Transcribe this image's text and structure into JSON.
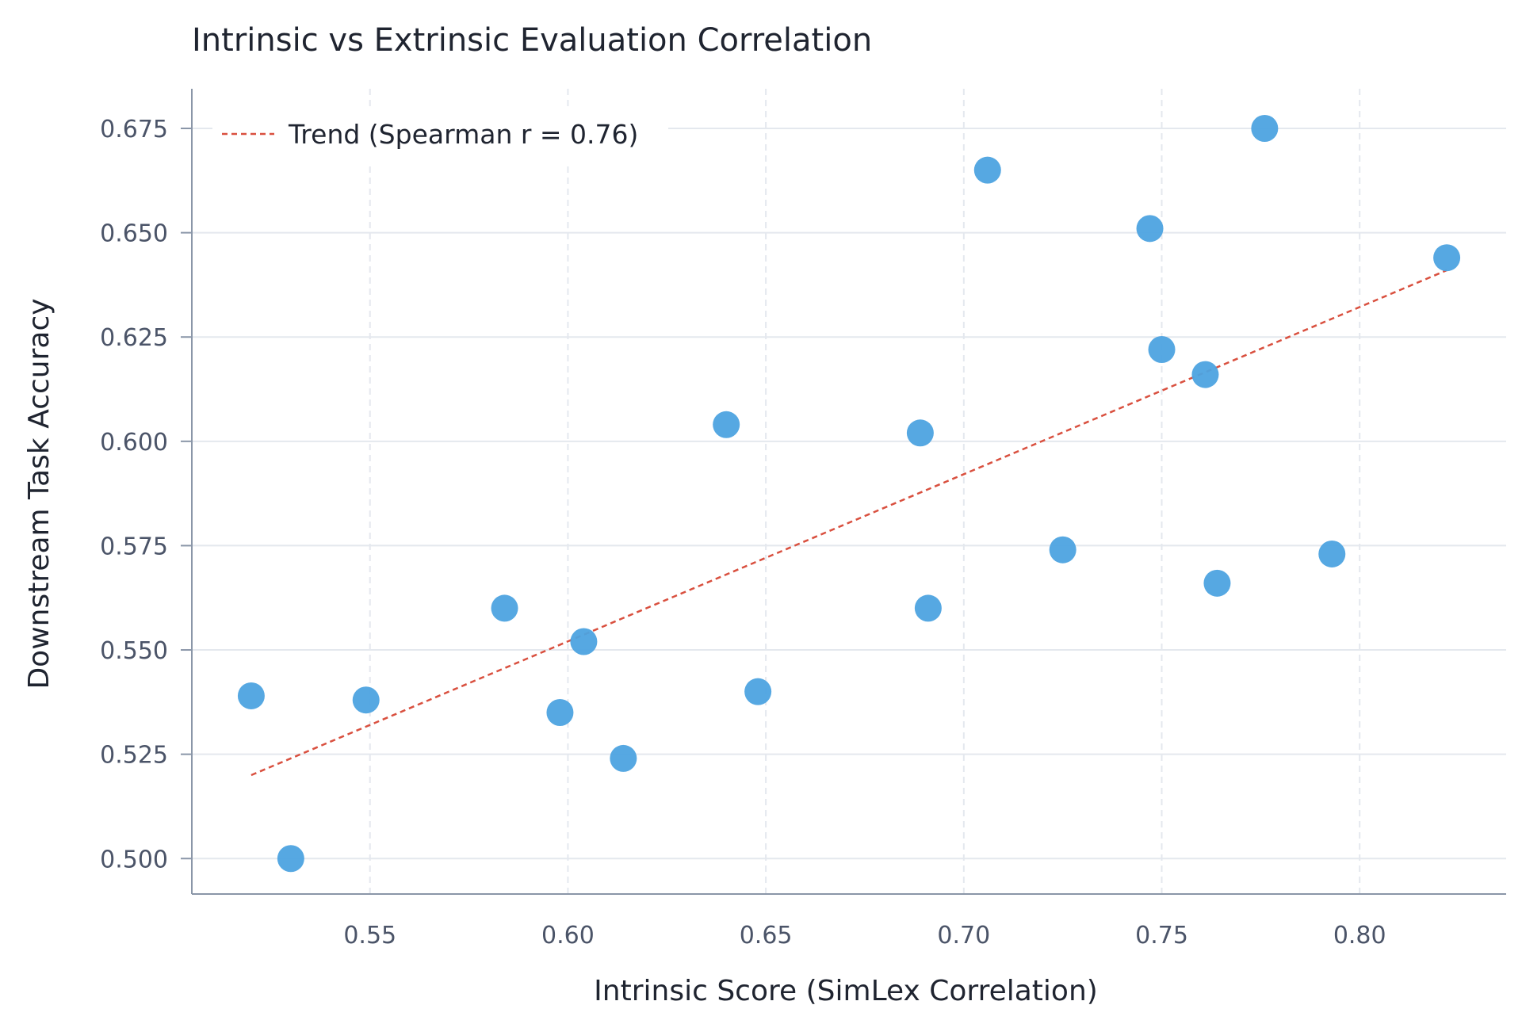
{
  "chart_data": {
    "type": "scatter",
    "title": "Intrinsic vs Extrinsic Evaluation Correlation",
    "xlabel": "Intrinsic Score (SimLex Correlation)",
    "ylabel": "Downstream Task Accuracy",
    "xlim": [
      0.505,
      0.837
    ],
    "ylim": [
      0.4915,
      0.6845
    ],
    "x_ticks": [
      0.55,
      0.6,
      0.65,
      0.7,
      0.75,
      0.8
    ],
    "y_ticks": [
      0.5,
      0.525,
      0.55,
      0.575,
      0.6,
      0.625,
      0.65,
      0.675
    ],
    "x_tick_labels": [
      "0.55",
      "0.60",
      "0.65",
      "0.70",
      "0.75",
      "0.80"
    ],
    "y_tick_labels": [
      "0.500",
      "0.525",
      "0.550",
      "0.575",
      "0.600",
      "0.625",
      "0.650",
      "0.675"
    ],
    "grid": true,
    "legend_position": "top-left",
    "colors": {
      "points": "#4da3e0",
      "trend": "#d9503f",
      "grid": "#e4e8ee",
      "axis": "#8a96a8"
    },
    "series": [
      {
        "points": [
          {
            "x": 0.52,
            "y": 0.539
          },
          {
            "x": 0.53,
            "y": 0.5
          },
          {
            "x": 0.549,
            "y": 0.538
          },
          {
            "x": 0.584,
            "y": 0.56
          },
          {
            "x": 0.598,
            "y": 0.535
          },
          {
            "x": 0.604,
            "y": 0.552
          },
          {
            "x": 0.614,
            "y": 0.524
          },
          {
            "x": 0.64,
            "y": 0.604
          },
          {
            "x": 0.648,
            "y": 0.54
          },
          {
            "x": 0.689,
            "y": 0.602
          },
          {
            "x": 0.691,
            "y": 0.56
          },
          {
            "x": 0.706,
            "y": 0.665
          },
          {
            "x": 0.725,
            "y": 0.574
          },
          {
            "x": 0.747,
            "y": 0.651
          },
          {
            "x": 0.75,
            "y": 0.622
          },
          {
            "x": 0.761,
            "y": 0.616
          },
          {
            "x": 0.764,
            "y": 0.566
          },
          {
            "x": 0.776,
            "y": 0.675
          },
          {
            "x": 0.793,
            "y": 0.573
          },
          {
            "x": 0.822,
            "y": 0.644
          }
        ]
      },
      {
        "name": "Trend (Spearman r = 0.76)",
        "style": "dashed-line",
        "points": [
          {
            "x": 0.52,
            "y": 0.52
          },
          {
            "x": 0.822,
            "y": 0.641
          }
        ]
      }
    ]
  }
}
